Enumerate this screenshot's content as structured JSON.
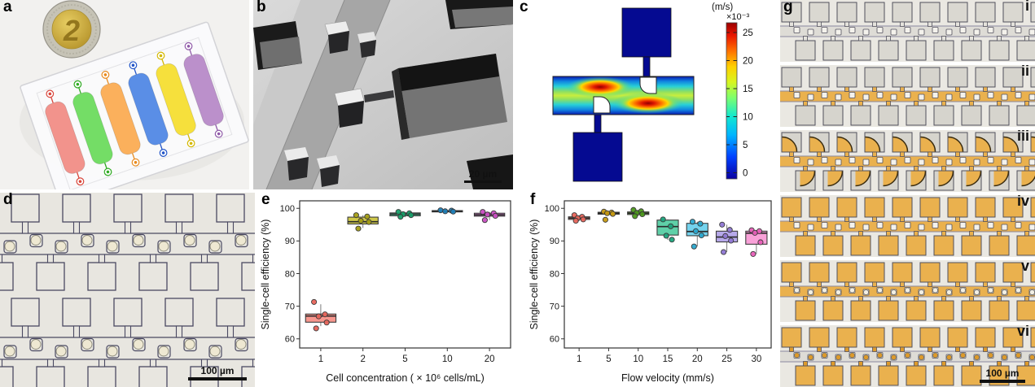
{
  "figure": {
    "panels": {
      "a": {
        "label": "a",
        "coin_label": "2",
        "channel_colors": [
          "#f2938c",
          "#74dd66",
          "#fbb05c",
          "#5a8ee6",
          "#f6e03c",
          "#bb90cb"
        ],
        "port_colors": [
          "#d9453a",
          "#2faa22",
          "#e88a1e",
          "#2255c8",
          "#d4b800",
          "#8f5aa8"
        ]
      },
      "b": {
        "label": "b",
        "scale_bar": "20 µm"
      },
      "c": {
        "label": "c",
        "colorbar": {
          "unit": "(m/s)",
          "multiplier": "×10⁻³",
          "ticks": [
            0,
            5,
            10,
            15,
            20,
            25
          ]
        }
      },
      "d": {
        "label": "d",
        "scale_bar": "100 µm"
      },
      "e": {
        "label": "e"
      },
      "f": {
        "label": "f"
      },
      "g": {
        "label": "g",
        "scale_bar": "100 µm",
        "strips": [
          {
            "label": "i",
            "channel_color": "#dedcd6",
            "square_color": "#dad8d1",
            "neck_color": "#e5e3dd",
            "partial_fill": 0,
            "bead_color": null
          },
          {
            "label": "ii",
            "channel_color": "#eab14e",
            "square_color": "#d6d4cd",
            "neck_color": "#eab14e",
            "partial_fill": 0,
            "bead_color": null
          },
          {
            "label": "iii",
            "channel_color": "#eab14e",
            "square_color": "#d6d4cd",
            "neck_color": "#eab14e",
            "partial_fill": 1,
            "bead_color": null
          },
          {
            "label": "iv",
            "channel_color": "#eab14e",
            "square_color": "#eab14e",
            "neck_color": "#eab14e",
            "partial_fill": 0,
            "bead_color": null
          },
          {
            "label": "v",
            "channel_color": "#eab14e",
            "square_color": "#eab14e",
            "neck_color": "#eab14e",
            "partial_fill": 0,
            "bead_color": "#f2efe4"
          },
          {
            "label": "vi",
            "channel_color": "#dedcd6",
            "square_color": "#eab14e",
            "neck_color": "#dd9a2b",
            "partial_fill": 0,
            "bead_color": "#dd9a2b"
          }
        ]
      }
    }
  },
  "chart_data": [
    {
      "id": "e",
      "type": "box",
      "title": "",
      "xlabel": "Cell concentration ( × 10⁶ cells/mL)",
      "ylabel": "Single-cell efficiency (%)",
      "ylim": [
        57,
        102.5
      ],
      "yticks": [
        60,
        70,
        80,
        90,
        100
      ],
      "grid": false,
      "legend": false,
      "categories": [
        "1",
        "2",
        "5",
        "10",
        "20"
      ],
      "series": [
        {
          "category": "1",
          "box_color": "#f8978e",
          "point_color": "#e8645a",
          "q1": 65.1,
          "median": 67.0,
          "q3": 67.6,
          "whisker_low": 63.9,
          "whisker_high": 70.6,
          "points": [
            71.3,
            67.5,
            66.9,
            65.0,
            63.2
          ]
        },
        {
          "category": "2",
          "box_color": "#cfc84a",
          "point_color": "#a49e14",
          "q1": 95.2,
          "median": 95.9,
          "q3": 97.3,
          "whisker_low": 94.0,
          "whisker_high": 97.9,
          "points": [
            97.9,
            97.5,
            96.2,
            95.8,
            93.8
          ]
        },
        {
          "category": "5",
          "box_color": "#55c9a0",
          "point_color": "#17a06a",
          "q1": 97.7,
          "median": 98.2,
          "q3": 98.6,
          "whisker_low": 97.3,
          "whisker_high": 98.9,
          "points": [
            98.9,
            98.5,
            98.2,
            97.9,
            97.4
          ]
        },
        {
          "category": "10",
          "box_color": "#4fa8d8",
          "point_color": "#1f7fb8",
          "q1": 98.9,
          "median": 99.1,
          "q3": 99.3,
          "whisker_low": 98.8,
          "whisker_high": 99.4,
          "points": [
            99.4,
            99.3,
            99.1,
            99.0
          ]
        },
        {
          "category": "20",
          "box_color": "#e583de",
          "point_color": "#c94ec2",
          "q1": 97.6,
          "median": 98.0,
          "q3": 98.5,
          "whisker_low": 96.4,
          "whisker_high": 98.9,
          "points": [
            98.9,
            98.5,
            98.1,
            97.7,
            96.4
          ]
        }
      ]
    },
    {
      "id": "f",
      "type": "box",
      "title": "",
      "xlabel": "Flow velocity (mm/s)",
      "ylabel": "Single-cell efficiency (%)",
      "ylim": [
        57,
        102.5
      ],
      "yticks": [
        60,
        70,
        80,
        90,
        100
      ],
      "grid": false,
      "legend": false,
      "categories": [
        "1",
        "5",
        "10",
        "15",
        "20",
        "25",
        "30"
      ],
      "series": [
        {
          "category": "1",
          "box_color": "#f8978e",
          "point_color": "#e8645a",
          "q1": 96.6,
          "median": 97.0,
          "q3": 97.4,
          "whisker_low": 96.1,
          "whisker_high": 97.9,
          "points": [
            97.9,
            97.4,
            97.0,
            96.6,
            96.2
          ]
        },
        {
          "category": "5",
          "box_color": "#e5bc3f",
          "point_color": "#c79a10",
          "q1": 98.2,
          "median": 98.5,
          "q3": 98.8,
          "whisker_low": 98.0,
          "whisker_high": 99.0,
          "points": [
            99.0,
            98.7,
            98.5,
            98.3,
            96.5
          ]
        },
        {
          "category": "10",
          "box_color": "#86c04a",
          "point_color": "#4d9a1b",
          "q1": 98.1,
          "median": 98.5,
          "q3": 98.9,
          "whisker_low": 97.6,
          "whisker_high": 99.5,
          "points": [
            99.5,
            99.1,
            98.6,
            98.2,
            97.6
          ]
        },
        {
          "category": "15",
          "box_color": "#5fd0a8",
          "point_color": "#1ba47c",
          "q1": 91.8,
          "median": 94.4,
          "q3": 96.4,
          "whisker_low": 90.3,
          "whisker_high": 96.6,
          "points": [
            96.6,
            94.5,
            91.6,
            90.4
          ]
        },
        {
          "category": "20",
          "box_color": "#74d3ee",
          "point_color": "#2aa8cf",
          "q1": 91.6,
          "median": 92.9,
          "q3": 95.4,
          "whisker_low": 88.3,
          "whisker_high": 95.9,
          "points": [
            95.9,
            95.3,
            93.0,
            91.7,
            88.3
          ]
        },
        {
          "category": "25",
          "box_color": "#b7a9ea",
          "point_color": "#8f77d4",
          "q1": 89.7,
          "median": 91.2,
          "q3": 93.0,
          "whisker_low": 86.6,
          "whisker_high": 95.0,
          "points": [
            95.0,
            93.4,
            91.5,
            90.1,
            86.6
          ]
        },
        {
          "category": "30",
          "box_color": "#f9a1d8",
          "point_color": "#e85eb8",
          "q1": 89.0,
          "median": 92.4,
          "q3": 93.0,
          "whisker_low": 86.0,
          "whisker_high": 93.3,
          "points": [
            93.3,
            93.0,
            92.5,
            89.6,
            86.0
          ]
        }
      ]
    }
  ]
}
